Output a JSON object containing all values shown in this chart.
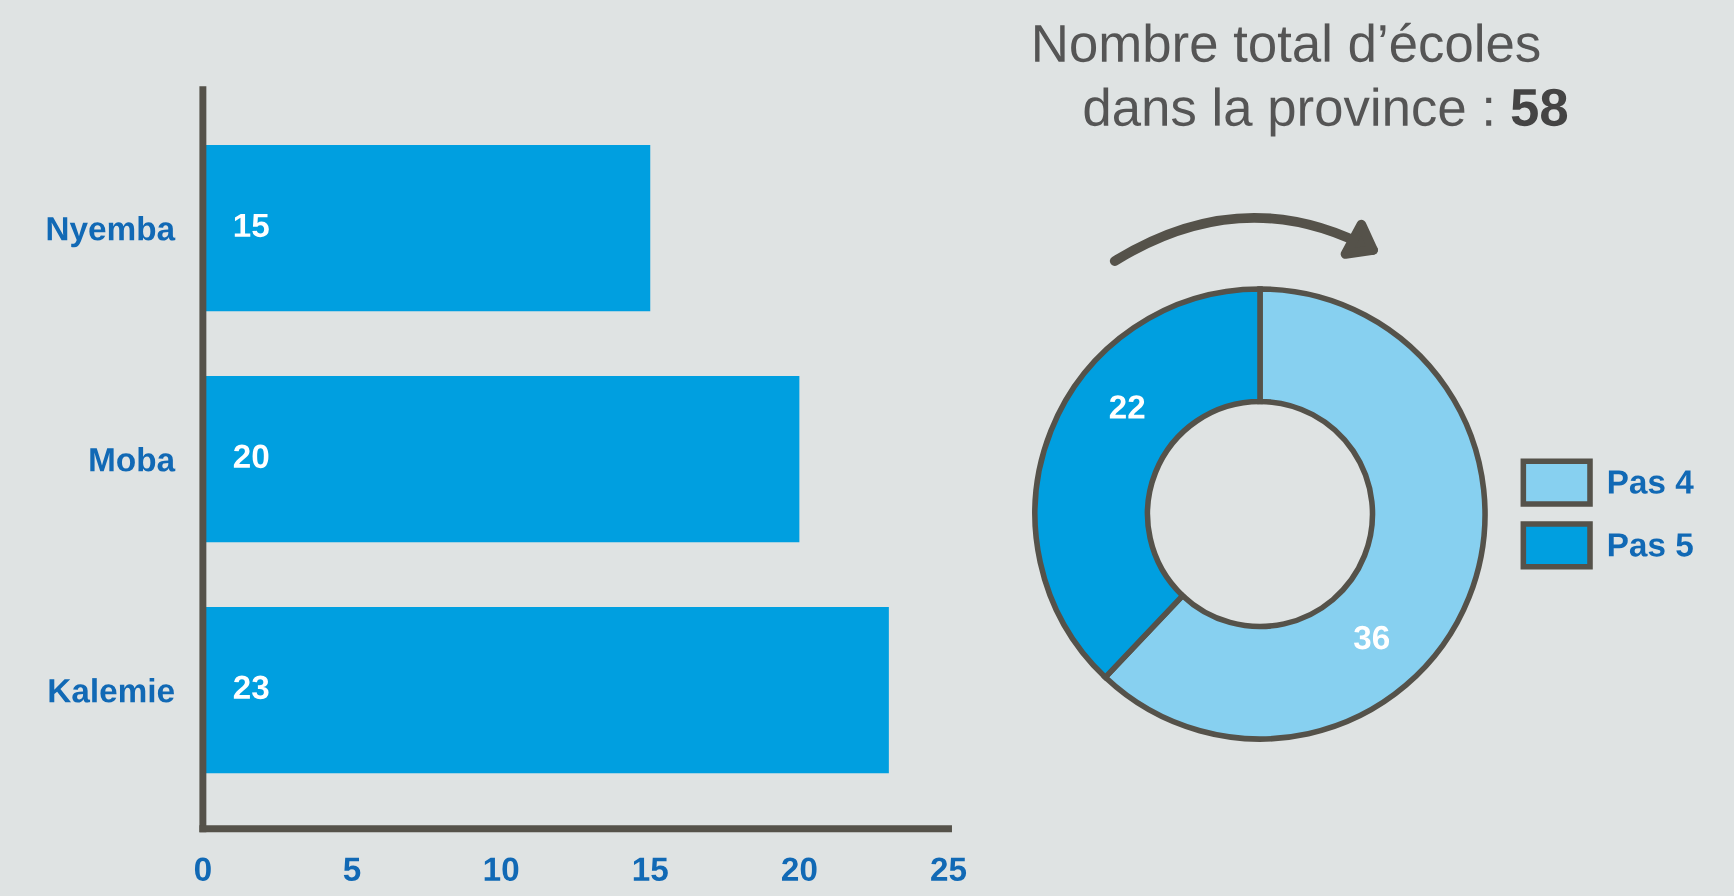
{
  "chart_data": [
    {
      "type": "bar",
      "orientation": "horizontal",
      "categories": [
        "Nyemba",
        "Moba",
        "Kalemie"
      ],
      "values": [
        15,
        20,
        23
      ],
      "color": "#009fe0",
      "xlim": [
        0,
        25
      ],
      "xticks": [
        0,
        5,
        10,
        15,
        20,
        25
      ],
      "data_labels": true,
      "grid": false
    },
    {
      "type": "donut",
      "title": "Nombre total d’écoles",
      "subtitle": "dans la province :",
      "annotations": [
        "58"
      ],
      "categories": [
        "Pas 4",
        "Pas 5"
      ],
      "values": [
        36,
        22
      ],
      "colors": [
        "#87d0f0",
        "#009fe0"
      ],
      "data_labels": true,
      "legend": "right"
    }
  ]
}
